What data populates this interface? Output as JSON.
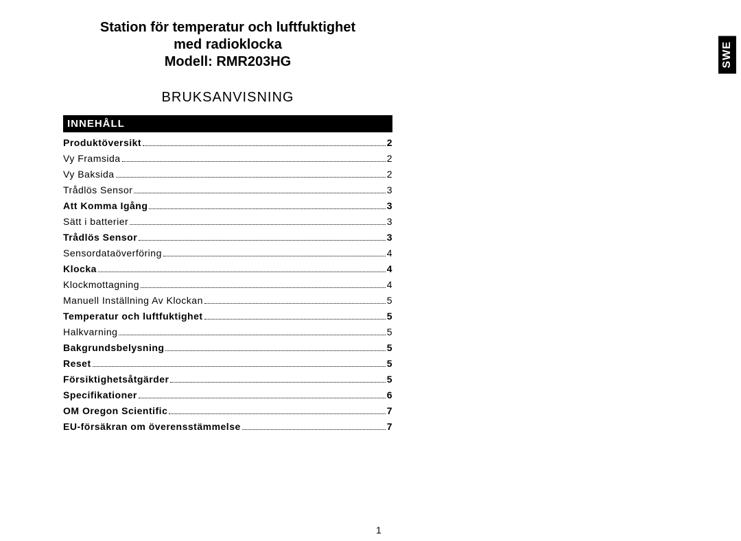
{
  "side_tab": "SWE",
  "title_line1": "Station för temperatur och luftfuktighet",
  "title_line2": "med radioklocka",
  "title_line3": "Modell: RMR203HG",
  "subtitle": "BRUKSANVISNING",
  "section_header": "INNEHÅLL",
  "page_number": "1",
  "toc": [
    {
      "label": "Produktöversikt",
      "page": "2",
      "bold": true
    },
    {
      "label": "Vy Framsida",
      "page": "2",
      "bold": false
    },
    {
      "label": "Vy Baksida",
      "page": "2",
      "bold": false
    },
    {
      "label": "Trådlös Sensor",
      "page": "3",
      "bold": false
    },
    {
      "label": "Att Komma Igång",
      "page": "3",
      "bold": true
    },
    {
      "label": "Sätt i batterier",
      "page": "3",
      "bold": false
    },
    {
      "label": "Trådlös Sensor",
      "page": "3",
      "bold": true
    },
    {
      "label": "Sensordataöverföring",
      "page": "4",
      "bold": false
    },
    {
      "label": "Klocka",
      "page": "4",
      "bold": true
    },
    {
      "label": "Klockmottagning",
      "page": "4",
      "bold": false
    },
    {
      "label": "Manuell Inställning Av Klockan ",
      "page": "5",
      "bold": false
    },
    {
      "label": "Temperatur och luftfuktighet",
      "page": "5",
      "bold": true
    },
    {
      "label": "Halkvarning",
      "page": "5",
      "bold": false
    },
    {
      "label": "Bakgrundsbelysning",
      "page": "5",
      "bold": true
    },
    {
      "label": "Reset",
      "page": "5",
      "bold": true
    },
    {
      "label": "Försiktighetsåtgärder",
      "page": "5",
      "bold": true
    },
    {
      "label": "Specifikationer ",
      "page": "6",
      "bold": true
    },
    {
      "label": "OM Oregon Scientific ",
      "page": "7",
      "bold": true
    },
    {
      "label": "EU-försäkran om överensstämmelse",
      "page": "7",
      "bold": true
    }
  ]
}
